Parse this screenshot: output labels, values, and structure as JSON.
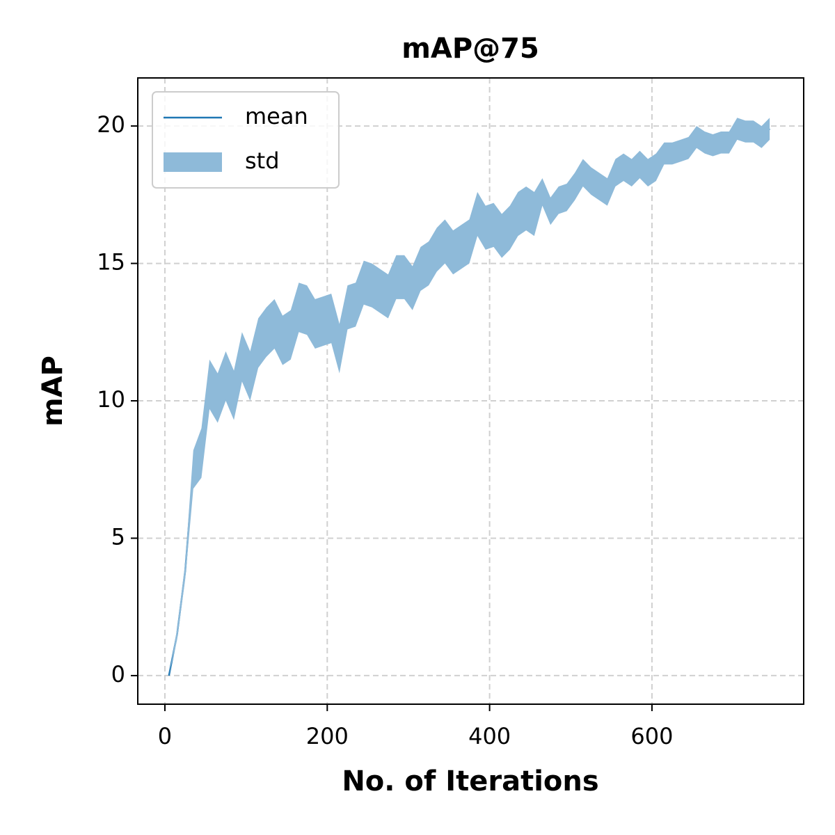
{
  "chart_data": {
    "type": "line",
    "title": "mAP@75",
    "xlabel": "No. of Iterations",
    "ylabel": "mAP",
    "x": [
      5,
      15,
      25,
      35,
      45,
      55,
      65,
      75,
      85,
      95,
      105,
      115,
      125,
      135,
      145,
      155,
      165,
      175,
      185,
      195,
      205,
      215,
      225,
      235,
      245,
      255,
      265,
      275,
      285,
      295,
      305,
      315,
      325,
      335,
      345,
      355,
      365,
      375,
      385,
      395,
      405,
      415,
      425,
      435,
      445,
      455,
      465,
      475,
      485,
      495,
      505,
      515,
      525,
      535,
      545,
      555,
      565,
      575,
      585,
      595,
      605,
      615,
      625,
      635,
      645,
      655,
      665,
      675,
      685,
      695,
      705,
      715,
      725,
      735,
      745
    ],
    "series": [
      {
        "name": "mean",
        "color": "#1f77b4",
        "values": [
          0.0,
          1.5,
          3.8,
          7.5,
          8.1,
          10.6,
          10.1,
          10.9,
          10.2,
          11.6,
          10.9,
          12.1,
          12.5,
          12.8,
          12.2,
          12.4,
          13.4,
          13.3,
          12.8,
          12.9,
          13.0,
          11.9,
          13.4,
          13.5,
          14.3,
          14.2,
          14.0,
          13.8,
          14.5,
          14.5,
          14.1,
          14.8,
          15.0,
          15.5,
          15.8,
          15.4,
          15.6,
          15.8,
          16.8,
          16.3,
          16.4,
          16.0,
          16.3,
          16.8,
          17.0,
          16.8,
          17.6,
          16.9,
          17.3,
          17.4,
          17.8,
          18.3,
          18.0,
          17.8,
          17.6,
          18.3,
          18.5,
          18.3,
          18.6,
          18.3,
          18.5,
          19.0,
          19.0,
          19.1,
          19.2,
          19.6,
          19.4,
          19.3,
          19.4,
          19.4,
          19.9,
          19.8,
          19.8,
          19.6,
          19.9
        ]
      },
      {
        "name": "std",
        "color": "#8ebad9",
        "lower": [
          0.0,
          1.3,
          3.5,
          6.8,
          7.2,
          9.7,
          9.2,
          10.0,
          9.3,
          10.7,
          10.0,
          11.2,
          11.6,
          11.9,
          11.3,
          11.5,
          12.5,
          12.4,
          11.9,
          12.0,
          12.1,
          11.0,
          12.6,
          12.7,
          13.5,
          13.4,
          13.2,
          13.0,
          13.7,
          13.7,
          13.3,
          14.0,
          14.2,
          14.7,
          15.0,
          14.6,
          14.8,
          15.0,
          16.0,
          15.5,
          15.6,
          15.2,
          15.5,
          16.0,
          16.2,
          16.0,
          17.1,
          16.4,
          16.8,
          16.9,
          17.3,
          17.8,
          17.5,
          17.3,
          17.1,
          17.8,
          18.0,
          17.8,
          18.1,
          17.8,
          18.0,
          18.6,
          18.6,
          18.7,
          18.8,
          19.2,
          19.0,
          18.9,
          19.0,
          19.0,
          19.5,
          19.4,
          19.4,
          19.2,
          19.5
        ],
        "upper": [
          0.0,
          1.7,
          4.1,
          8.2,
          9.0,
          11.5,
          11.0,
          11.8,
          11.1,
          12.5,
          11.8,
          13.0,
          13.4,
          13.7,
          13.1,
          13.3,
          14.3,
          14.2,
          13.7,
          13.8,
          13.9,
          12.8,
          14.2,
          14.3,
          15.1,
          15.0,
          14.8,
          14.6,
          15.3,
          15.3,
          14.9,
          15.6,
          15.8,
          16.3,
          16.6,
          16.2,
          16.4,
          16.6,
          17.6,
          17.1,
          17.2,
          16.8,
          17.1,
          17.6,
          17.8,
          17.6,
          18.1,
          17.4,
          17.8,
          17.9,
          18.3,
          18.8,
          18.5,
          18.3,
          18.1,
          18.8,
          19.0,
          18.8,
          19.1,
          18.8,
          19.0,
          19.4,
          19.4,
          19.5,
          19.6,
          20.0,
          19.8,
          19.7,
          19.8,
          19.8,
          20.3,
          20.2,
          20.2,
          20.0,
          20.3
        ]
      }
    ],
    "xlim": [
      -33.4,
      786.9
    ],
    "ylim": [
      -1.04,
      21.75
    ],
    "xticks": [
      0,
      200,
      400,
      600
    ],
    "yticks": [
      0,
      5,
      10,
      15,
      20
    ],
    "grid": true,
    "legend": "upper left"
  }
}
